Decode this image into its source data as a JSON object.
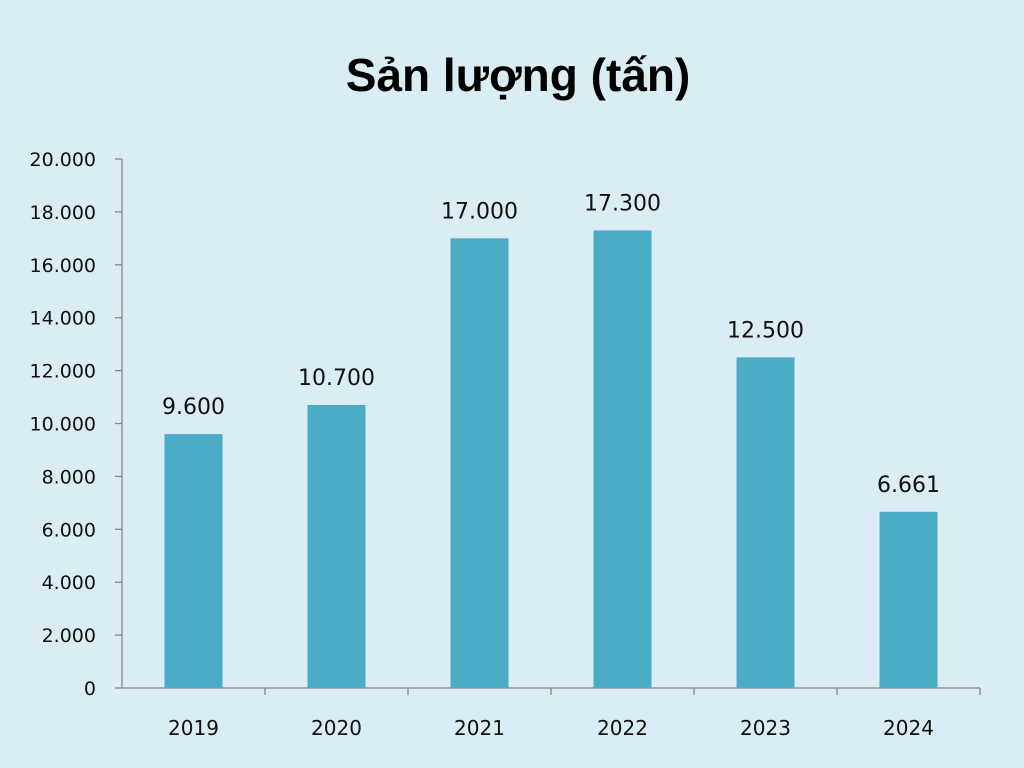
{
  "chart_data": {
    "type": "bar",
    "title": "Sản lượng (tấn)",
    "categories": [
      "2019",
      "2020",
      "2021",
      "2022",
      "2023",
      "2024"
    ],
    "values": [
      9600,
      10700,
      17000,
      17300,
      12500,
      6661
    ],
    "data_labels": [
      "9.600",
      "10.700",
      "17.000",
      "17.300",
      "12.500",
      "6.661"
    ],
    "ylim": [
      0,
      20000
    ],
    "yticks": [
      0,
      2000,
      4000,
      6000,
      8000,
      10000,
      12000,
      14000,
      16000,
      18000,
      20000
    ],
    "ytick_labels": [
      "0",
      "2.000",
      "4.000",
      "6.000",
      "8.000",
      "10.000",
      "12.000",
      "14.000",
      "16.000",
      "18.000",
      "20.000"
    ],
    "xlabel": "",
    "ylabel": "",
    "grid": false,
    "legend": "none",
    "colors": {
      "bar": "#4bacc6",
      "axis": "#868686",
      "background": "#daedf4"
    }
  }
}
